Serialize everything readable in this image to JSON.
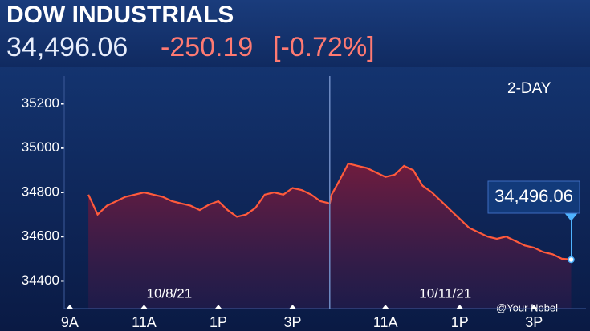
{
  "chart_data": {
    "type": "line",
    "title": "DOW INDUSTRIALS",
    "header": {
      "price": "34,496.06",
      "change": "-250.19",
      "change_percent": "[-0.72%]"
    },
    "period_label": "2-DAY",
    "dates": [
      "10/8/21",
      "10/11/21"
    ],
    "last_value_label": "34,496.06",
    "watermark": "@Your Nobel",
    "color": "#ff5a3c",
    "x": [
      0.5,
      0.75,
      1.0,
      1.25,
      1.5,
      1.75,
      2.0,
      2.25,
      2.5,
      2.75,
      3.0,
      3.25,
      3.5,
      3.75,
      4.0,
      4.25,
      4.5,
      4.75,
      5.0,
      5.25,
      5.5,
      5.75,
      6.0,
      6.25,
      6.5,
      6.75,
      7.0,
      7.05,
      7.25,
      7.5,
      7.75,
      8.0,
      8.25,
      8.5,
      8.75,
      9.0,
      9.25,
      9.5,
      9.75,
      10.0,
      10.25,
      10.5,
      10.75,
      11.0,
      11.25,
      11.5,
      11.75,
      12.0,
      12.25,
      12.5,
      12.75,
      13.0,
      13.25,
      13.5
    ],
    "values": [
      34790,
      34700,
      34740,
      34760,
      34780,
      34790,
      34800,
      34790,
      34780,
      34760,
      34750,
      34740,
      34720,
      34745,
      34760,
      34720,
      34690,
      34700,
      34730,
      34790,
      34800,
      34790,
      34820,
      34810,
      34790,
      34760,
      34750,
      34790,
      34850,
      34930,
      34920,
      34910,
      34890,
      34870,
      34880,
      34920,
      34900,
      34830,
      34800,
      34760,
      34720,
      34680,
      34640,
      34620,
      34600,
      34590,
      34600,
      34580,
      34560,
      34550,
      34530,
      34520,
      34500,
      34496.06
    ],
    "xlim": [
      -0.15,
      13.9
    ],
    "xticks": [
      {
        "value": 0,
        "label": "9A"
      },
      {
        "value": 2,
        "label": "11A"
      },
      {
        "value": 4,
        "label": "1P"
      },
      {
        "value": 6,
        "label": "3P"
      },
      {
        "value": 8.5,
        "label": "11A"
      },
      {
        "value": 10.5,
        "label": "1P"
      },
      {
        "value": 12.5,
        "label": "3P"
      }
    ],
    "ylim": [
      34275,
      35325
    ],
    "yticks": [
      34400,
      34600,
      34800,
      35000,
      35200
    ]
  }
}
